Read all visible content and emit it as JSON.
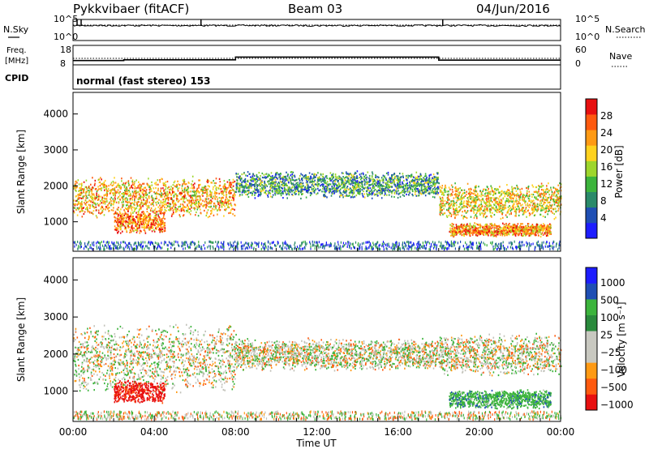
{
  "header": {
    "station": "Pykkvibaer (fitACF)",
    "beam": "Beam 03",
    "date": "04/Jun/2016"
  },
  "left_labels": {
    "nsky": "N.Sky",
    "freq_line1": "Freq.",
    "freq_line2": "[MHz]",
    "cpid": "CPID"
  },
  "right_labels": {
    "nsearch": "N.Search",
    "nave": "Nave"
  },
  "cpid_text": "normal (fast stereo) 153",
  "colors": {
    "frame": "#000000",
    "power_scale": [
      "#1d1dff",
      "#1f4fb4",
      "#2a8a6a",
      "#3cb43c",
      "#9ed62c",
      "#ffd21e",
      "#ff9a14",
      "#ff5a0f",
      "#e81010"
    ],
    "velocity_scale": [
      "#e81010",
      "#ff5a0f",
      "#ff9a14",
      "#c8c8c0",
      "#c8c8c0",
      "#2a8a3c",
      "#3cb43c",
      "#1f4fb4",
      "#1d1dff"
    ],
    "ground_scatter": "#c2c2ba"
  },
  "chart_data": [
    {
      "type": "line",
      "name": "noise panel",
      "left_ticks": [
        "10^5",
        "10^0"
      ],
      "right_ticks": [
        "10^5",
        "10^0"
      ],
      "left_label": "N.Sky",
      "right_label": "N.Search"
    },
    {
      "type": "line",
      "name": "frequency / nave panel",
      "left_ticks": [
        "18",
        "8"
      ],
      "right_ticks": [
        "60",
        "0"
      ],
      "ylim_freq": [
        8,
        18
      ],
      "ylim_nave": [
        0,
        60
      ],
      "freq_steps": [
        {
          "t": 0.0,
          "v": 10.2
        },
        {
          "t": 2.5,
          "v": 10.6
        },
        {
          "t": 8.0,
          "v": 12.0
        },
        {
          "t": 18.0,
          "v": 10.4
        },
        {
          "t": 24.0,
          "v": 10.4
        }
      ],
      "nave_level": 20
    },
    {
      "type": "heatmap",
      "name": "power",
      "ylabel": "Slant Range [km]",
      "yticks": [
        1000,
        2000,
        3000,
        4000
      ],
      "ylim": [
        180,
        4600
      ],
      "xlim": [
        0,
        24
      ],
      "colorbar": {
        "label": "Power [dB]",
        "ticks": [
          "28",
          "24",
          "20",
          "16",
          "12",
          "8",
          "4"
        ],
        "range": [
          0,
          30
        ]
      },
      "bands": [
        {
          "t0": 0,
          "t1": 8,
          "center": 1700,
          "width": 900,
          "value": 20
        },
        {
          "t0": 8,
          "t1": 18,
          "center": 2050,
          "width": 600,
          "value": 10
        },
        {
          "t0": 18,
          "t1": 24,
          "center": 1600,
          "width": 800,
          "value": 18
        },
        {
          "t0": 18.5,
          "t1": 23.5,
          "center": 800,
          "width": 300,
          "value": 22
        },
        {
          "t0": 2,
          "t1": 4.5,
          "center": 1000,
          "width": 500,
          "value": 24
        }
      ]
    },
    {
      "type": "heatmap",
      "name": "velocity",
      "ylabel": "Slant Range [km]",
      "xlabel": "Time UT",
      "yticks": [
        1000,
        2000,
        3000,
        4000
      ],
      "ylim": [
        180,
        4600
      ],
      "xlim": [
        0,
        24
      ],
      "xticks": [
        "00:00",
        "04:00",
        "08:00",
        "12:00",
        "16:00",
        "20:00",
        "00:00"
      ],
      "colorbar": {
        "label": "Velocity [m s⁻¹]",
        "ticks": [
          "1000",
          "500",
          "100",
          "25",
          "−25",
          "−100",
          "−500",
          "−1000"
        ]
      },
      "bands": [
        {
          "t0": 0,
          "t1": 8,
          "center": 1900,
          "width": 1500,
          "value": 0
        },
        {
          "t0": 8,
          "t1": 18,
          "center": 2000,
          "width": 700,
          "value": 0
        },
        {
          "t0": 18,
          "t1": 24,
          "center": 2000,
          "width": 900,
          "value": 0
        },
        {
          "t0": 2,
          "t1": 4.5,
          "center": 1000,
          "width": 500,
          "value": -600
        },
        {
          "t0": 18.5,
          "t1": 23.5,
          "center": 800,
          "width": 400,
          "value": 200
        }
      ]
    }
  ]
}
